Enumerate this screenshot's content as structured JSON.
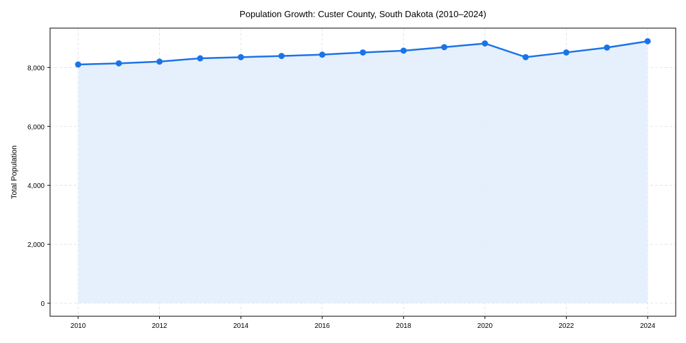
{
  "chart_data": {
    "type": "area",
    "title": "Population Growth: Custer County, South Dakota (2010–2024)",
    "xlabel": "",
    "ylabel": "Total Population",
    "x": [
      2010,
      2011,
      2012,
      2013,
      2014,
      2015,
      2016,
      2017,
      2018,
      2019,
      2020,
      2021,
      2022,
      2023,
      2024
    ],
    "series": [
      {
        "name": "Total Population",
        "values": [
          8100,
          8140,
          8200,
          8310,
          8350,
          8390,
          8435,
          8510,
          8570,
          8690,
          8815,
          8350,
          8510,
          8675,
          8890
        ]
      }
    ],
    "xlim": [
      2009.31,
      2024.69
    ],
    "ylim": [
      -442,
      9335
    ],
    "xticks": [
      2010,
      2012,
      2014,
      2016,
      2018,
      2020,
      2022,
      2024
    ],
    "xtick_labels": [
      "2010",
      "2012",
      "2014",
      "2016",
      "2018",
      "2020",
      "2022",
      "2024"
    ],
    "yticks": [
      0,
      2000,
      4000,
      6000,
      8000
    ],
    "ytick_labels": [
      "0",
      "2,000",
      "4,000",
      "6,000",
      "8,000"
    ],
    "grid": true,
    "colors": {
      "line": "#1a73e8",
      "fill": "#e3eefd",
      "grid": "#d9dde3"
    }
  }
}
